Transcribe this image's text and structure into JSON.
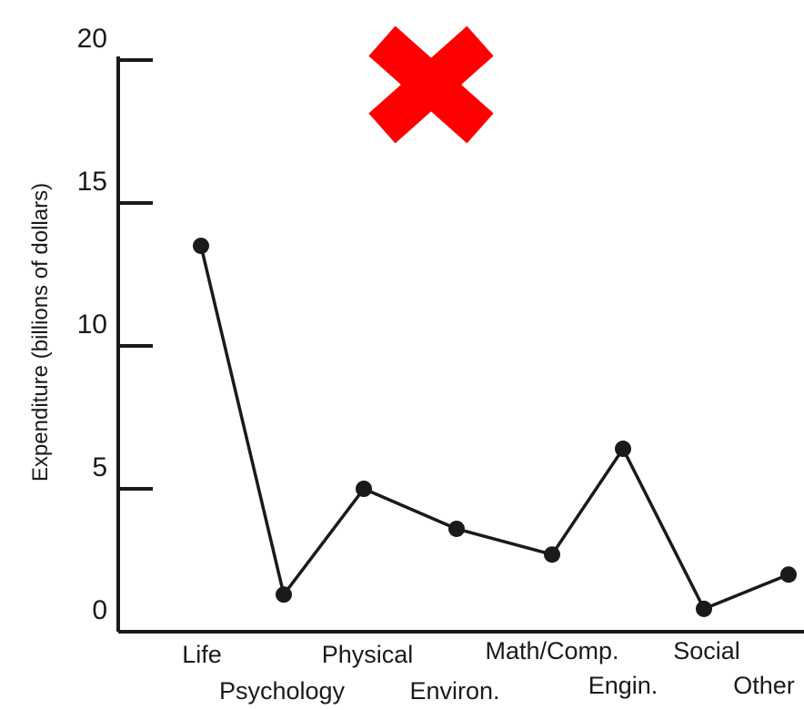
{
  "overlay": {
    "icon": "red-x-icon",
    "color": "#ff0000"
  },
  "chart_data": {
    "type": "line",
    "title": "",
    "xlabel": "",
    "ylabel": "Expenditure (billions of dollars)",
    "ylim": [
      0,
      20
    ],
    "yticks": [
      0,
      5,
      10,
      15,
      20
    ],
    "grid": false,
    "categories": [
      "Life",
      "Psychology",
      "Physical",
      "Environ.",
      "Math/Comp.",
      "Engin.",
      "Social",
      "Other"
    ],
    "values": [
      13.5,
      1.3,
      5.0,
      3.6,
      2.7,
      6.4,
      0.8,
      2.0
    ],
    "line_color": "#1a1a1a"
  }
}
